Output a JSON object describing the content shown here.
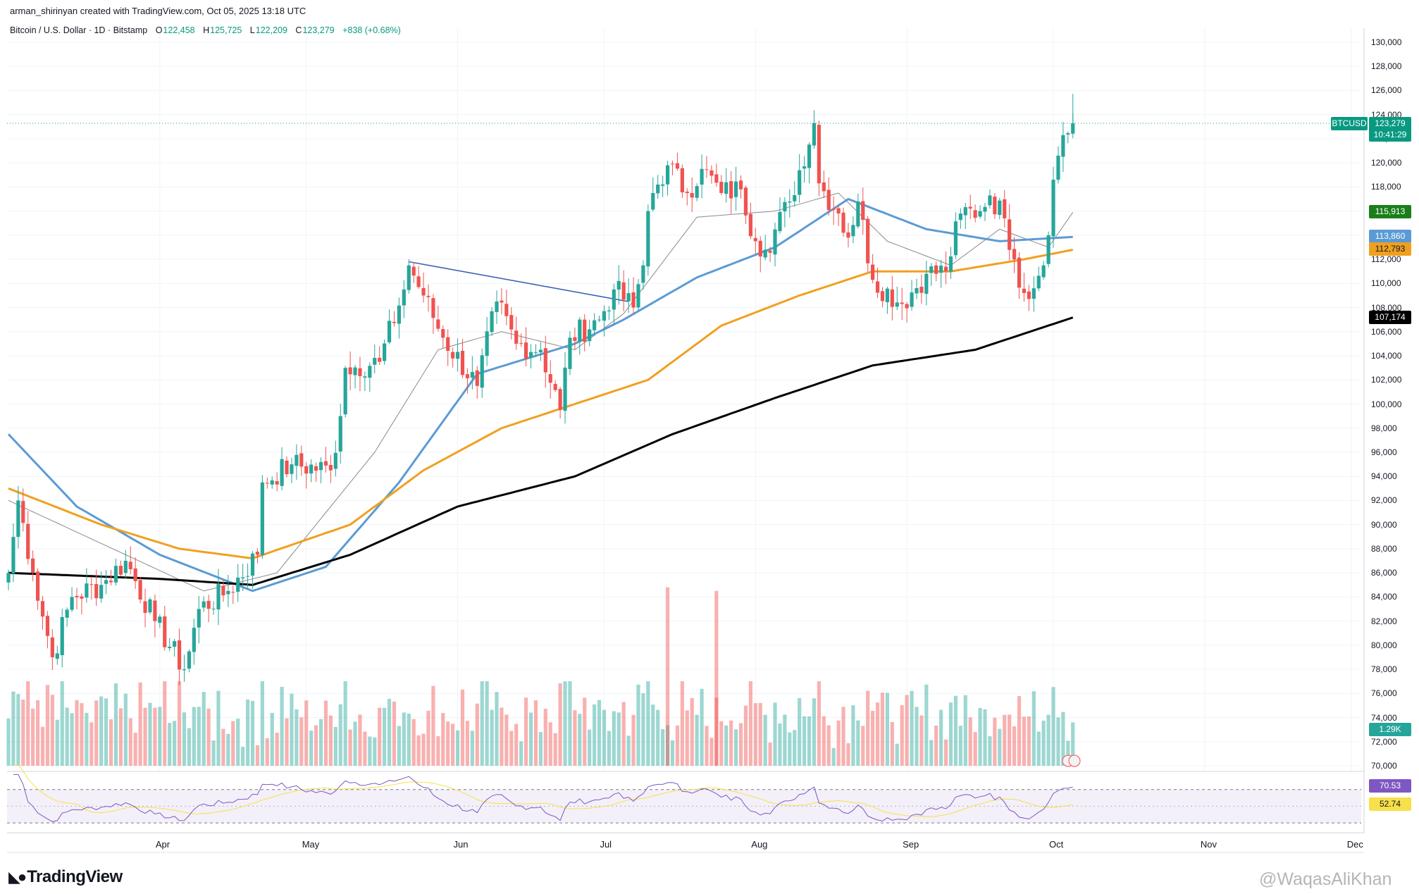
{
  "header": {
    "published": "arman_shirinyan created with TradingView.com, Oct 05, 2025 13:18 UTC",
    "symbol": "Bitcoin / U.S. Dollar · 1D · Bitstamp",
    "open_label": "O",
    "open": "122,458",
    "high_label": "H",
    "high": "125,725",
    "low_label": "L",
    "low": "122,209",
    "close_label": "C",
    "close": "123,279",
    "change": "+838 (+0.68%)"
  },
  "labels": {
    "ticker": "BTCUSD",
    "price": "123,279",
    "countdown": "10:41:29",
    "ma_short": "115,913",
    "ma_blue": "113,860",
    "ma_orange": "112,793",
    "ma_black": "107,174",
    "volume": "1.29K",
    "rsi": "70.53",
    "rsi_ma": "52.74"
  },
  "footer": {
    "brand": "TradingView",
    "watermark": "@WaqasAliKhan"
  },
  "colors": {
    "up": "#26a69a",
    "down": "#ef5350",
    "ma_blue": "#5b9bd5",
    "ma_orange": "#f0a020",
    "ma_black": "#000000",
    "ma_gray": "#8a8a8a",
    "ma_green": "#1a7f1a",
    "rsi": "#7e57c2"
  },
  "chart_data": {
    "type": "candlestick",
    "price_ticks": [
      "130,000",
      "128,000",
      "126,000",
      "124,000",
      "122,000",
      "120,000",
      "118,000",
      "116,000",
      "114,000",
      "112,000",
      "110,000",
      "108,000",
      "106,000",
      "104,000",
      "102,000",
      "100,000",
      "98,000",
      "96,000",
      "94,000",
      "92,000",
      "90,000",
      "88,000",
      "86,000",
      "84,000",
      "82,000",
      "80,000",
      "78,000",
      "76,000",
      "74,000",
      "72,000",
      "70,000"
    ],
    "x_labels": [
      "Apr",
      "May",
      "Jun",
      "Jul",
      "Aug",
      "Sep",
      "Oct",
      "Nov",
      "Dec"
    ],
    "ylim": [
      70000,
      130000
    ],
    "close_anchors": [
      {
        "date": "2025-03-01",
        "value": 86000
      },
      {
        "date": "2025-03-03",
        "value": 92000
      },
      {
        "date": "2025-03-06",
        "value": 86000
      },
      {
        "date": "2025-03-10",
        "value": 79000
      },
      {
        "date": "2025-03-14",
        "value": 84000
      },
      {
        "date": "2025-03-20",
        "value": 85000
      },
      {
        "date": "2025-03-25",
        "value": 87000
      },
      {
        "date": "2025-03-31",
        "value": 82000
      },
      {
        "date": "2025-04-06",
        "value": 78000
      },
      {
        "date": "2025-04-09",
        "value": 83000
      },
      {
        "date": "2025-04-15",
        "value": 84500
      },
      {
        "date": "2025-04-21",
        "value": 87500
      },
      {
        "date": "2025-04-22",
        "value": 93500
      },
      {
        "date": "2025-04-28",
        "value": 95000
      },
      {
        "date": "2025-05-06",
        "value": 94500
      },
      {
        "date": "2025-05-08",
        "value": 99000
      },
      {
        "date": "2025-05-09",
        "value": 103000
      },
      {
        "date": "2025-05-16",
        "value": 103500
      },
      {
        "date": "2025-05-21",
        "value": 109500
      },
      {
        "date": "2025-05-22",
        "value": 111500
      },
      {
        "date": "2025-05-25",
        "value": 109000
      },
      {
        "date": "2025-05-29",
        "value": 105500
      },
      {
        "date": "2025-06-05",
        "value": 101500
      },
      {
        "date": "2025-06-09",
        "value": 108500
      },
      {
        "date": "2025-06-13",
        "value": 105000
      },
      {
        "date": "2025-06-18",
        "value": 104500
      },
      {
        "date": "2025-06-22",
        "value": 99500
      },
      {
        "date": "2025-06-24",
        "value": 105500
      },
      {
        "date": "2025-06-30",
        "value": 107000
      },
      {
        "date": "2025-07-03",
        "value": 109500
      },
      {
        "date": "2025-07-07",
        "value": 108000
      },
      {
        "date": "2025-07-09",
        "value": 111500
      },
      {
        "date": "2025-07-10",
        "value": 116000
      },
      {
        "date": "2025-07-11",
        "value": 117500
      },
      {
        "date": "2025-07-14",
        "value": 119800
      },
      {
        "date": "2025-07-18",
        "value": 117500
      },
      {
        "date": "2025-07-21",
        "value": 119500
      },
      {
        "date": "2025-07-25",
        "value": 117500
      },
      {
        "date": "2025-07-29",
        "value": 117800
      },
      {
        "date": "2025-08-01",
        "value": 113500
      },
      {
        "date": "2025-08-03",
        "value": 112800
      },
      {
        "date": "2025-08-08",
        "value": 116800
      },
      {
        "date": "2025-08-13",
        "value": 123300
      },
      {
        "date": "2025-08-14",
        "value": 118300
      },
      {
        "date": "2025-08-18",
        "value": 115800
      },
      {
        "date": "2025-08-20",
        "value": 113800
      },
      {
        "date": "2025-08-22",
        "value": 116800
      },
      {
        "date": "2025-08-25",
        "value": 110300
      },
      {
        "date": "2025-08-31",
        "value": 108300
      },
      {
        "date": "2025-09-05",
        "value": 110800
      },
      {
        "date": "2025-09-09",
        "value": 111000
      },
      {
        "date": "2025-09-12",
        "value": 115800
      },
      {
        "date": "2025-09-16",
        "value": 116000
      },
      {
        "date": "2025-09-18",
        "value": 117300
      },
      {
        "date": "2025-09-21",
        "value": 115400
      },
      {
        "date": "2025-09-23",
        "value": 112000
      },
      {
        "date": "2025-09-25",
        "value": 109200
      },
      {
        "date": "2025-09-27",
        "value": 109600
      },
      {
        "date": "2025-09-30",
        "value": 114000
      },
      {
        "date": "2025-10-01",
        "value": 118600
      },
      {
        "date": "2025-10-02",
        "value": 120600
      },
      {
        "date": "2025-10-03",
        "value": 122300
      },
      {
        "date": "2025-10-04",
        "value": 122458
      },
      {
        "date": "2025-10-05",
        "value": 123279
      }
    ],
    "moving_averages": [
      {
        "name": "115,913",
        "color": "#8a8a8a",
        "anchors": [
          {
            "date": "2025-03-01",
            "value": 92000
          },
          {
            "date": "2025-04-10",
            "value": 84500
          },
          {
            "date": "2025-04-25",
            "value": 86000
          },
          {
            "date": "2025-05-15",
            "value": 96000
          },
          {
            "date": "2025-05-28",
            "value": 104500
          },
          {
            "date": "2025-06-10",
            "value": 106000
          },
          {
            "date": "2025-06-25",
            "value": 104500
          },
          {
            "date": "2025-07-05",
            "value": 107500
          },
          {
            "date": "2025-07-20",
            "value": 115500
          },
          {
            "date": "2025-08-05",
            "value": 116000
          },
          {
            "date": "2025-08-18",
            "value": 117500
          },
          {
            "date": "2025-08-28",
            "value": 113500
          },
          {
            "date": "2025-09-10",
            "value": 111500
          },
          {
            "date": "2025-09-20",
            "value": 114500
          },
          {
            "date": "2025-09-30",
            "value": 113000
          },
          {
            "date": "2025-10-05",
            "value": 115900
          }
        ]
      },
      {
        "name": "113,860",
        "color": "#5b9bd5",
        "anchors": [
          {
            "date": "2025-03-01",
            "value": 97500
          },
          {
            "date": "2025-03-15",
            "value": 91500
          },
          {
            "date": "2025-04-01",
            "value": 87500
          },
          {
            "date": "2025-04-20",
            "value": 84500
          },
          {
            "date": "2025-05-05",
            "value": 86500
          },
          {
            "date": "2025-05-20",
            "value": 93500
          },
          {
            "date": "2025-06-05",
            "value": 102500
          },
          {
            "date": "2025-06-25",
            "value": 105000
          },
          {
            "date": "2025-07-05",
            "value": 107000
          },
          {
            "date": "2025-07-20",
            "value": 110500
          },
          {
            "date": "2025-08-05",
            "value": 113000
          },
          {
            "date": "2025-08-20",
            "value": 117000
          },
          {
            "date": "2025-09-05",
            "value": 114500
          },
          {
            "date": "2025-09-20",
            "value": 113500
          },
          {
            "date": "2025-10-05",
            "value": 113860
          }
        ]
      },
      {
        "name": "112,793",
        "color": "#f0a020",
        "anchors": [
          {
            "date": "2025-03-01",
            "value": 93000
          },
          {
            "date": "2025-03-20",
            "value": 90000
          },
          {
            "date": "2025-04-05",
            "value": 88000
          },
          {
            "date": "2025-04-20",
            "value": 87200
          },
          {
            "date": "2025-05-10",
            "value": 90000
          },
          {
            "date": "2025-05-25",
            "value": 94500
          },
          {
            "date": "2025-06-10",
            "value": 98000
          },
          {
            "date": "2025-06-25",
            "value": 100000
          },
          {
            "date": "2025-07-10",
            "value": 102000
          },
          {
            "date": "2025-07-25",
            "value": 106500
          },
          {
            "date": "2025-08-10",
            "value": 109000
          },
          {
            "date": "2025-08-25",
            "value": 111000
          },
          {
            "date": "2025-09-10",
            "value": 111000
          },
          {
            "date": "2025-09-25",
            "value": 112000
          },
          {
            "date": "2025-10-05",
            "value": 112793
          }
        ]
      },
      {
        "name": "107,174",
        "color": "#000000",
        "anchors": [
          {
            "date": "2025-03-01",
            "value": 86000
          },
          {
            "date": "2025-04-01",
            "value": 85500
          },
          {
            "date": "2025-04-20",
            "value": 85000
          },
          {
            "date": "2025-05-10",
            "value": 87500
          },
          {
            "date": "2025-06-01",
            "value": 91500
          },
          {
            "date": "2025-06-25",
            "value": 94000
          },
          {
            "date": "2025-07-15",
            "value": 97500
          },
          {
            "date": "2025-08-05",
            "value": 100500
          },
          {
            "date": "2025-08-25",
            "value": 103200
          },
          {
            "date": "2025-09-15",
            "value": 104500
          },
          {
            "date": "2025-10-05",
            "value": 107174
          }
        ]
      }
    ],
    "trendline": [
      {
        "date": "2025-05-22",
        "value": 111800
      },
      {
        "date": "2025-07-06",
        "value": 108500
      }
    ],
    "volume_spikes": [
      {
        "date": "2025-07-14",
        "value": 84800
      },
      {
        "date": "2025-07-24",
        "value": 84500
      }
    ],
    "rsi": {
      "last": 70.53,
      "ma": 52.74,
      "bands": [
        70,
        30
      ]
    }
  }
}
